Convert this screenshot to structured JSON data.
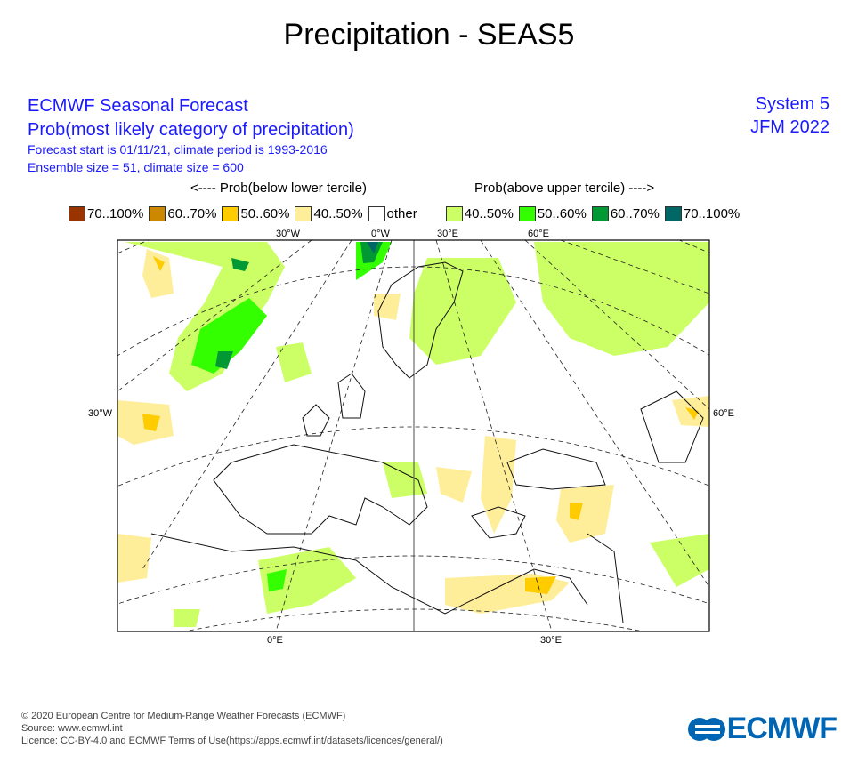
{
  "title": "Precipitation - SEAS5",
  "header": {
    "line1": "ECMWF Seasonal Forecast",
    "line2": "Prob(most likely category of precipitation)",
    "line3": "Forecast start is 01/11/21, climate period is 1993-2016",
    "line4": "Ensemble size = 51, climate size = 600",
    "system": "System 5",
    "period": "JFM 2022"
  },
  "legend": {
    "below_label": "<---- Prob(below lower tercile)",
    "above_label": "Prob(above upper tercile) ---->",
    "items": [
      {
        "label": "70..100%",
        "color": "#993300"
      },
      {
        "label": "60..70%",
        "color": "#cc8800"
      },
      {
        "label": "50..60%",
        "color": "#ffcc00"
      },
      {
        "label": "40..50%",
        "color": "#ffee99"
      },
      {
        "label": "other",
        "color": "#ffffff"
      },
      {
        "label": "40..50%",
        "color": "#ccff66"
      },
      {
        "label": "50..60%",
        "color": "#33ff00"
      },
      {
        "label": "60..70%",
        "color": "#009933"
      },
      {
        "label": "70..100%",
        "color": "#006666"
      }
    ]
  },
  "map": {
    "top_ticks": [
      "30°W",
      "0°W",
      "30°E",
      "60°E"
    ],
    "left_tick": "30°W",
    "right_tick": "60°E",
    "bottom_ticks": [
      "0°E",
      "30°E"
    ]
  },
  "footer": {
    "copyright": "© 2020 European Centre for Medium-Range Weather Forecasts (ECMWF)",
    "source": "Source: www.ecmwf.int",
    "licence": "Licence: CC-BY-4.0 and ECMWF Terms of Use(https://apps.ecmwf.int/datasets/licences/general/)",
    "logo": "ECMWF"
  }
}
